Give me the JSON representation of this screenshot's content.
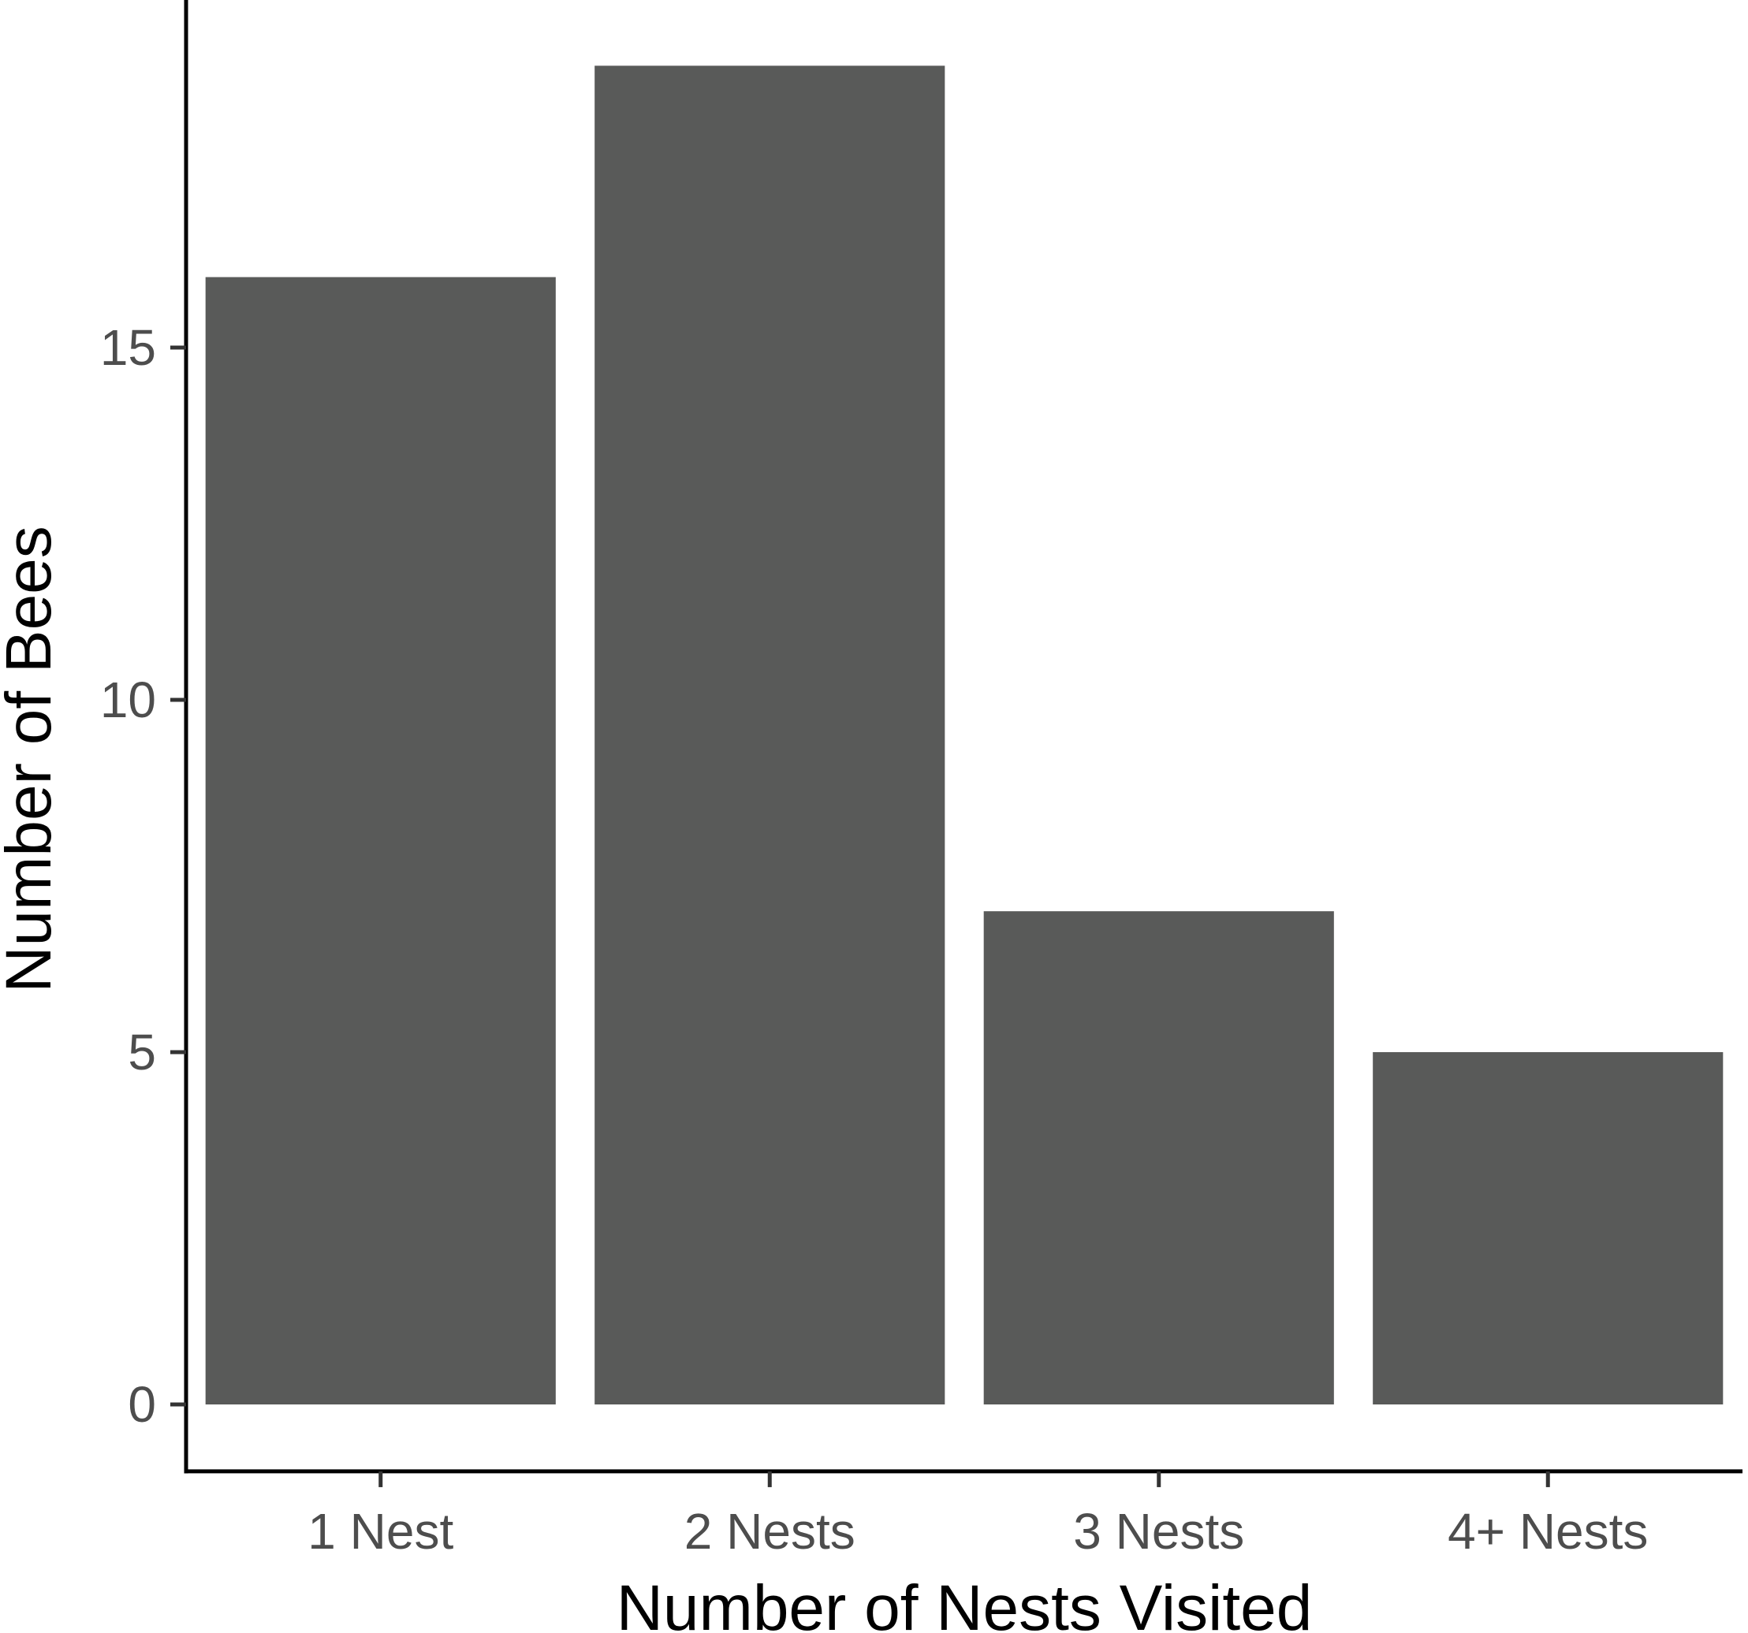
{
  "chart_data": {
    "type": "bar",
    "categories": [
      "1 Nest",
      "2 Nests",
      "3 Nests",
      "4+ Nests"
    ],
    "values": [
      16,
      19,
      7,
      5
    ],
    "xlabel": "Number of Nests Visited",
    "ylabel": "Number of Bees",
    "ylim": [
      -0.95,
      20
    ],
    "yticks": [
      0,
      5,
      10,
      15
    ],
    "grid": false,
    "bar_color": "#595a59"
  }
}
